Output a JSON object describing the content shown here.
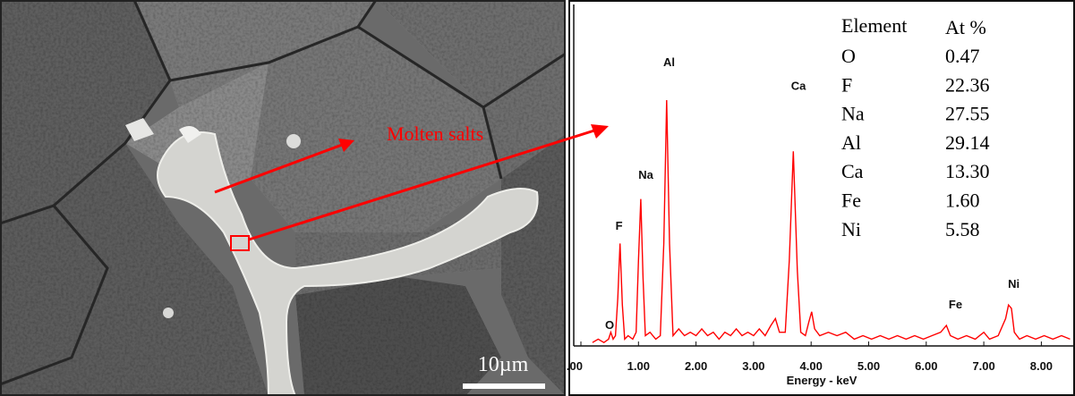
{
  "image": {
    "annotation": "Molten salts",
    "scale_bar": "10µm"
  },
  "table": {
    "header": [
      "Element",
      "At %"
    ],
    "rows": [
      [
        "O",
        "0.47"
      ],
      [
        "F",
        "22.36"
      ],
      [
        "Na",
        "27.55"
      ],
      [
        "Al",
        "29.14"
      ],
      [
        "Ca",
        "13.30"
      ],
      [
        "Fe",
        "1.60"
      ],
      [
        "Ni",
        "5.58"
      ]
    ]
  },
  "chart_data": {
    "type": "line",
    "x_label": "Energy - keV",
    "xlim": [
      0,
      8.55
    ],
    "ylim": [
      0,
      100
    ],
    "xticks": [
      {
        "value": 0,
        "label": ".00"
      },
      {
        "value": 1,
        "label": "1.00"
      },
      {
        "value": 2,
        "label": "2.00"
      },
      {
        "value": 3,
        "label": "3.00"
      },
      {
        "value": 4,
        "label": "4.00"
      },
      {
        "value": 5,
        "label": "5.00"
      },
      {
        "value": 6,
        "label": "6.00"
      },
      {
        "value": 7,
        "label": "7.00"
      },
      {
        "value": 8,
        "label": "8.00"
      }
    ],
    "annotations": [
      {
        "text": "O",
        "x": 0.42,
        "y": 5
      },
      {
        "text": "F",
        "x": 0.6,
        "y": 34
      },
      {
        "text": "Na",
        "x": 1.0,
        "y": 49
      },
      {
        "text": "Al",
        "x": 1.43,
        "y": 82
      },
      {
        "text": "Ca",
        "x": 3.65,
        "y": 75
      },
      {
        "text": "Fe",
        "x": 6.39,
        "y": 11
      },
      {
        "text": "Ni",
        "x": 7.42,
        "y": 17
      }
    ],
    "x": [
      0.2,
      0.3,
      0.4,
      0.48,
      0.52,
      0.56,
      0.6,
      0.64,
      0.68,
      0.72,
      0.76,
      0.82,
      0.9,
      0.96,
      1.0,
      1.04,
      1.08,
      1.12,
      1.2,
      1.3,
      1.38,
      1.44,
      1.49,
      1.54,
      1.6,
      1.7,
      1.8,
      1.9,
      2.0,
      2.1,
      2.2,
      2.3,
      2.4,
      2.5,
      2.6,
      2.7,
      2.8,
      2.9,
      3.0,
      3.1,
      3.2,
      3.3,
      3.38,
      3.45,
      3.55,
      3.62,
      3.69,
      3.76,
      3.82,
      3.9,
      3.96,
      4.01,
      4.06,
      4.15,
      4.3,
      4.45,
      4.6,
      4.75,
      4.9,
      5.05,
      5.2,
      5.35,
      5.5,
      5.65,
      5.8,
      5.95,
      6.1,
      6.25,
      6.35,
      6.42,
      6.55,
      6.7,
      6.85,
      7.0,
      7.1,
      7.25,
      7.38,
      7.43,
      7.48,
      7.53,
      7.62,
      7.75,
      7.9,
      8.05,
      8.2,
      8.35,
      8.5
    ],
    "series": [
      {
        "color": "#ff0000",
        "values": [
          1,
          2,
          1,
          2,
          4,
          2,
          3,
          14,
          30,
          12,
          2,
          3,
          2,
          4,
          25,
          43,
          20,
          3,
          4,
          2,
          3,
          30,
          72,
          30,
          3,
          5,
          3,
          4,
          3,
          5,
          3,
          4,
          2,
          4,
          3,
          5,
          3,
          4,
          3,
          5,
          3,
          6,
          8,
          4,
          4,
          25,
          57,
          22,
          4,
          3,
          7,
          10,
          5,
          3,
          4,
          3,
          4,
          2,
          3,
          2,
          3,
          2,
          3,
          2,
          3,
          2,
          3,
          4,
          6,
          3,
          2,
          3,
          2,
          4,
          2,
          3,
          8,
          12,
          11,
          4,
          2,
          3,
          2,
          3,
          2,
          3,
          2
        ]
      }
    ]
  }
}
